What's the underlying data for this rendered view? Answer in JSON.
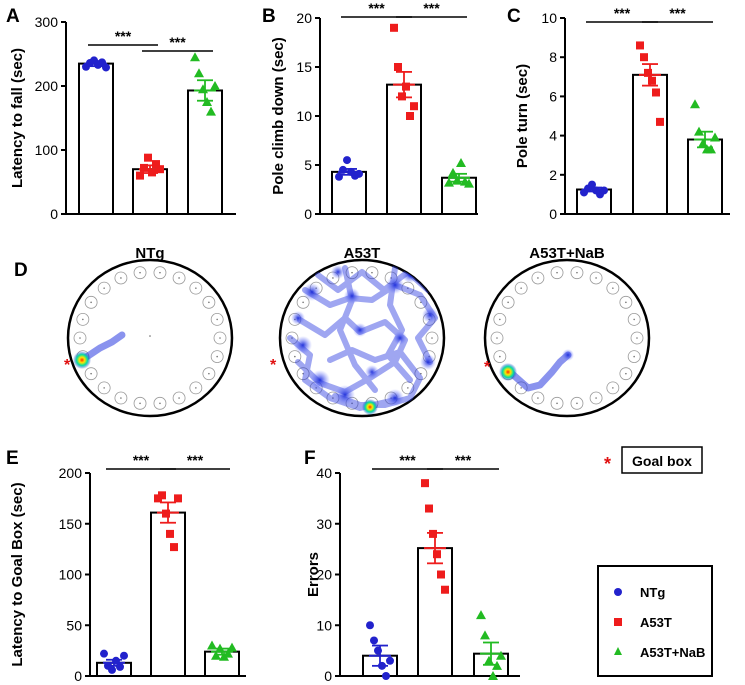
{
  "groups": [
    "NTg",
    "A53T",
    "A53T+NaB"
  ],
  "colors": {
    "NTg": "#2222cc",
    "A53T": "#ee1c1c",
    "A53T+NaB": "#22bb22",
    "goal": "#e01010"
  },
  "chart_data": [
    {
      "id": "A",
      "letter": "A",
      "type": "bar",
      "ylabel": "Latency to fall (sec)",
      "ylim": [
        0,
        300
      ],
      "yticks": [
        0,
        100,
        200,
        300
      ],
      "means": [
        235,
        70,
        193
      ],
      "sem": [
        4,
        6,
        16
      ],
      "points": [
        [
          230,
          236,
          240,
          233,
          237,
          229
        ],
        [
          60,
          72,
          88,
          65,
          78,
          70
        ],
        [
          245,
          220,
          195,
          175,
          160,
          200
        ]
      ],
      "sig": [
        "***",
        "***"
      ]
    },
    {
      "id": "B",
      "letter": "B",
      "type": "bar",
      "ylabel": "Pole climb down (sec)",
      "ylim": [
        0,
        20
      ],
      "yticks": [
        0,
        5,
        10,
        15,
        20
      ],
      "means": [
        4.3,
        13.2,
        3.7
      ],
      "sem": [
        0.3,
        1.3,
        0.4
      ],
      "points": [
        [
          3.8,
          4.5,
          5.5,
          4.3,
          3.9,
          4.1
        ],
        [
          19,
          15,
          12,
          13,
          10,
          11
        ],
        [
          3.2,
          4.2,
          3.4,
          5.2,
          3.3,
          3.1
        ]
      ],
      "sig": [
        "***",
        "***"
      ]
    },
    {
      "id": "C",
      "letter": "C",
      "type": "bar",
      "ylabel": "Pole turn (sec)",
      "ylim": [
        0,
        10
      ],
      "yticks": [
        0,
        2,
        4,
        6,
        8,
        10
      ],
      "means": [
        1.25,
        7.1,
        3.8
      ],
      "sem": [
        0.1,
        0.55,
        0.4
      ],
      "points": [
        [
          1.1,
          1.3,
          1.5,
          1.2,
          1.0,
          1.2
        ],
        [
          8.6,
          8.0,
          7.2,
          6.8,
          6.2,
          4.7
        ],
        [
          5.6,
          4.2,
          3.6,
          3.3,
          3.3,
          3.9
        ]
      ],
      "sig": [
        "***",
        "***"
      ]
    },
    {
      "id": "E",
      "letter": "E",
      "type": "bar",
      "ylabel": "Latency to Goal Box (sec)",
      "ylim": [
        0,
        200
      ],
      "yticks": [
        0,
        50,
        100,
        150,
        200
      ],
      "means": [
        13,
        161,
        24
      ],
      "sem": [
        3,
        10,
        3
      ],
      "points": [
        [
          22,
          10,
          6,
          15,
          9,
          20
        ],
        [
          175,
          178,
          160,
          140,
          127,
          175
        ],
        [
          30,
          20,
          27,
          19,
          22,
          28
        ]
      ],
      "sig": [
        "***",
        "***"
      ]
    },
    {
      "id": "F",
      "letter": "F",
      "type": "bar",
      "ylabel": "Errors",
      "ylim": [
        0,
        40
      ],
      "yticks": [
        0,
        10,
        20,
        30,
        40
      ],
      "means": [
        4,
        25.2,
        4.4
      ],
      "sem": [
        2,
        3,
        2.2
      ],
      "points": [
        [
          10,
          7,
          5,
          2,
          0,
          3
        ],
        [
          38,
          33,
          28,
          24,
          20,
          17
        ],
        [
          12,
          8,
          3,
          0,
          2,
          4
        ]
      ],
      "sig": [
        "***",
        "***"
      ]
    }
  ],
  "heatmaps": {
    "letter": "D",
    "titles": [
      "NTg",
      "A53T",
      "A53T+NaB"
    ],
    "goal_marker": "*"
  },
  "goal_legend": {
    "marker": "*",
    "label": "Goal box"
  },
  "legend": [
    {
      "label": "NTg",
      "shape": "circle"
    },
    {
      "label": "A53T",
      "shape": "square"
    },
    {
      "label": "A53T+NaB",
      "shape": "triangle"
    }
  ]
}
